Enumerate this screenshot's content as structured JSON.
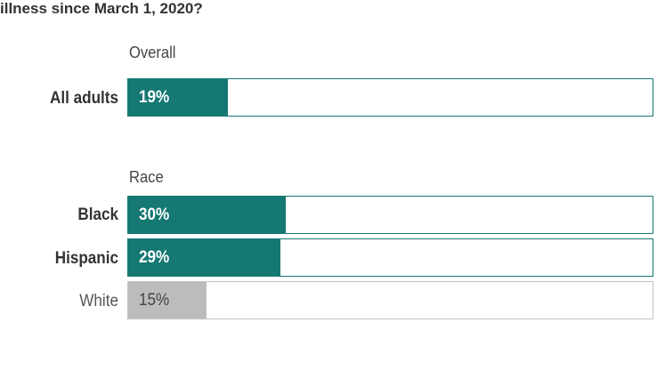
{
  "title": "illness since March 1, 2020?",
  "sections": [
    {
      "label": "Overall"
    },
    {
      "label": "Race"
    }
  ],
  "chart_data": {
    "type": "bar",
    "orientation": "horizontal",
    "xlim": [
      0,
      100
    ],
    "groups": [
      {
        "label": "Overall",
        "categories": [
          "All adults"
        ],
        "values": [
          19
        ],
        "value_labels": [
          "19%"
        ]
      },
      {
        "label": "Race",
        "categories": [
          "Black",
          "Hispanic",
          "White"
        ],
        "values": [
          30,
          29,
          15
        ],
        "value_labels": [
          "30%",
          "29%",
          "15%"
        ]
      }
    ],
    "colors": {
      "highlight": "#157872",
      "muted": "#bbbcbe"
    }
  },
  "rows": [
    {
      "label": "All adults",
      "value": 19,
      "value_label": "19%"
    },
    {
      "label": "Black",
      "value": 30,
      "value_label": "30%"
    },
    {
      "label": "Hispanic",
      "value": 29,
      "value_label": "29%"
    },
    {
      "label": "White",
      "value": 15,
      "value_label": "15%"
    }
  ]
}
